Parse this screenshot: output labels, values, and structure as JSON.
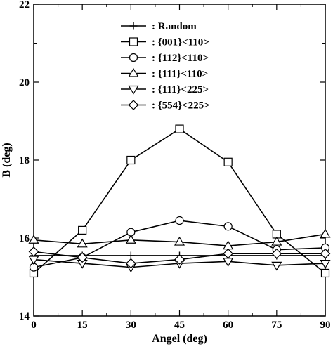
{
  "chart_data": {
    "type": "line",
    "title": "",
    "xlabel": "Angel (deg)",
    "ylabel": "B (deg)",
    "xlim": [
      0,
      90
    ],
    "ylim": [
      14,
      22
    ],
    "xticks": [
      0,
      15,
      30,
      45,
      60,
      75,
      90
    ],
    "yticks": [
      14,
      16,
      18,
      20,
      22
    ],
    "grid": false,
    "legend_position": "top-left",
    "x": [
      0,
      15,
      30,
      45,
      60,
      75,
      90
    ],
    "series": [
      {
        "name": ": Random",
        "marker": "plus",
        "values": [
          15.55,
          15.55,
          15.55,
          15.55,
          15.55,
          15.55,
          15.55
        ]
      },
      {
        "name": ": {001}<110>",
        "marker": "square",
        "values": [
          15.1,
          16.2,
          18.0,
          18.8,
          17.95,
          16.1,
          15.1
        ]
      },
      {
        "name": ": {112}<110>",
        "marker": "circle",
        "values": [
          15.25,
          15.5,
          16.15,
          16.45,
          16.3,
          15.7,
          15.75
        ]
      },
      {
        "name": ": {111}<110>",
        "marker": "triangle-up",
        "values": [
          15.95,
          15.85,
          15.95,
          15.9,
          15.8,
          15.9,
          16.1
        ]
      },
      {
        "name": ": {111}<225>",
        "marker": "triangle-down",
        "values": [
          15.45,
          15.35,
          15.25,
          15.35,
          15.4,
          15.3,
          15.35
        ]
      },
      {
        "name": ": {554}<225>",
        "marker": "diamond",
        "values": [
          15.65,
          15.5,
          15.35,
          15.45,
          15.6,
          15.6,
          15.6
        ]
      }
    ]
  }
}
